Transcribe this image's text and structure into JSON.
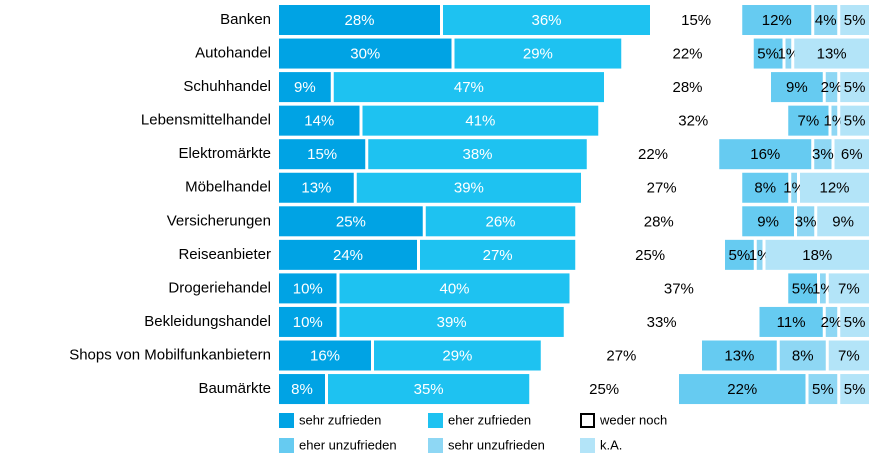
{
  "chart_data": {
    "type": "stacked-bar-horizontal",
    "categories": [
      "Banken",
      "Autohandel",
      "Schuhhandel",
      "Lebensmittelhandel",
      "Elektromärkte",
      "Möbelhandel",
      "Versicherungen",
      "Reiseanbieter",
      "Drogeriehandel",
      "Bekleidungshandel",
      "Shops von Mobilfunkanbietern",
      "Baumärkte"
    ],
    "series": [
      {
        "name": "sehr zufrieden",
        "color": "#00a3e4",
        "values": [
          28,
          30,
          9,
          14,
          15,
          13,
          25,
          24,
          10,
          10,
          16,
          8
        ],
        "value_labels": [
          "28%",
          "30%",
          "9%",
          "14%",
          "15%",
          "13%",
          "25%",
          "24%",
          "10%",
          "10%",
          "16%",
          "8%"
        ]
      },
      {
        "name": "eher zufrieden",
        "color": "#1ec2f1",
        "values": [
          36,
          29,
          47,
          41,
          38,
          39,
          26,
          27,
          40,
          39,
          29,
          35
        ],
        "value_labels": [
          "36%",
          "29%",
          "47%",
          "41%",
          "38%",
          "39%",
          "26%",
          "27%",
          "40%",
          "39%",
          "29%",
          "35%"
        ]
      },
      {
        "name": "weder noch",
        "color": "none",
        "values": [
          15,
          22,
          28,
          32,
          22,
          27,
          28,
          25,
          37,
          33,
          27,
          25
        ],
        "value_labels": [
          "15%",
          "22%",
          "28%",
          "32%",
          "22%",
          "27%",
          "28%",
          "25%",
          "37%",
          "33%",
          "27%",
          "25%"
        ]
      },
      {
        "name": "eher unzufrieden",
        "color": "#66cbf1",
        "values": [
          12,
          5,
          9,
          7,
          16,
          8,
          9,
          5,
          5,
          11,
          13,
          22
        ],
        "value_labels": [
          "12%",
          "5%",
          "9%",
          "7%",
          "16%",
          "8%",
          "9%",
          "5%",
          "5%",
          "11%",
          "13%",
          "22%"
        ]
      },
      {
        "name": "sehr unzufrieden",
        "color": "#8ed7f4",
        "values": [
          4,
          1,
          2,
          1,
          3,
          1,
          3,
          1,
          1,
          2,
          8,
          5
        ],
        "value_labels": [
          "4%",
          "1%",
          "2%",
          "1%",
          "3%",
          "1%",
          "3%",
          "1%",
          "1%",
          "2%",
          "8%",
          "5%"
        ]
      },
      {
        "name": "k.A.",
        "color": "#b3e4f8",
        "values": [
          5,
          13,
          5,
          5,
          6,
          12,
          9,
          18,
          7,
          5,
          7,
          5
        ],
        "value_labels": [
          "5%",
          "13%",
          "5%",
          "5%",
          "6%",
          "12%",
          "9%",
          "18%",
          "7%",
          "5%",
          "7%",
          "5%"
        ]
      }
    ]
  }
}
